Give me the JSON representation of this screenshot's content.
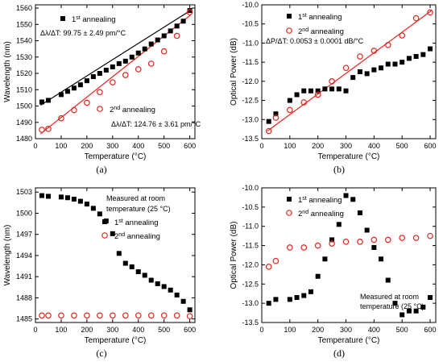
{
  "colors": {
    "series1": "#000000",
    "series2": "#e8241c",
    "fit1": "#000000",
    "fit2": "#e8241c"
  },
  "chart_data": [
    {
      "type": "scatter",
      "panel_label": "(a)",
      "xlabel": "Temperature (°C)",
      "ylabel": "Wavelength (nm)",
      "xlim": [
        0,
        620
      ],
      "ylim": [
        1480,
        1562
      ],
      "xticks": [
        0,
        100,
        200,
        300,
        400,
        500,
        600
      ],
      "yticks": [
        1480,
        1490,
        1500,
        1510,
        1520,
        1530,
        1540,
        1550,
        1560
      ],
      "legend_position": "top-left",
      "annotations": {
        "series1": "Δλ/ΔT: 99.75 ± 2.49 pm/°C",
        "series2": "Δλ/ΔT: 124.76 ± 3.61 pm/°C"
      },
      "series": [
        {
          "name_main": "1",
          "name_sup": "st",
          "name_rest": " annealing",
          "marker": "square",
          "x": [
            25,
            50,
            100,
            125,
            150,
            175,
            200,
            225,
            250,
            275,
            300,
            325,
            350,
            375,
            400,
            425,
            450,
            475,
            500,
            525,
            550,
            575,
            600
          ],
          "y": [
            1502.5,
            1503.5,
            1507,
            1509,
            1511,
            1513,
            1515.5,
            1518,
            1520,
            1522,
            1524,
            1526,
            1527.5,
            1530,
            1532.5,
            1535,
            1538,
            1540.5,
            1543,
            1546,
            1549,
            1552,
            1558.5
          ],
          "fit": [
            [
              20,
              1500.5
            ],
            [
              605,
              1558.8
            ]
          ]
        },
        {
          "name_main": "2",
          "name_sup": "nd",
          "name_rest": " annealing",
          "marker": "circle",
          "x": [
            25,
            50,
            100,
            150,
            200,
            250,
            300,
            350,
            400,
            450,
            500,
            550,
            600
          ],
          "y": [
            1485.5,
            1486,
            1492.5,
            1497.5,
            1502,
            1508.5,
            1514.5,
            1519,
            1522.5,
            1526,
            1533.5,
            1543,
            1557.5
          ],
          "fit": [
            [
              20,
              1483
            ],
            [
              605,
              1556
            ]
          ]
        }
      ]
    },
    {
      "type": "scatter",
      "panel_label": "(b)",
      "xlabel": "Temperature (°C)",
      "ylabel": "Optical Power (dB)",
      "xlim": [
        0,
        620
      ],
      "ylim": [
        -13.5,
        -10.0
      ],
      "xticks": [
        0,
        100,
        200,
        300,
        400,
        500,
        600
      ],
      "yticks": [
        -13.5,
        -13.0,
        -12.5,
        -12.0,
        -11.5,
        -11.0,
        -10.5,
        -10.0
      ],
      "ytick_labels": [
        "-13.5",
        "-13.0",
        "-12.5",
        "-12.0",
        "-11.5",
        "-11.0",
        "-10.5",
        "-10.0"
      ],
      "legend_position": "top-left",
      "annotations": {
        "series2": "ΔP/ΔT: 0.0053 ± 0.0001 dB/°C"
      },
      "series": [
        {
          "name_main": "1",
          "name_sup": "st",
          "name_rest": " annealing",
          "marker": "square",
          "x": [
            25,
            50,
            100,
            125,
            150,
            175,
            200,
            225,
            250,
            275,
            300,
            325,
            350,
            375,
            400,
            425,
            450,
            475,
            500,
            525,
            550,
            575,
            600
          ],
          "y": [
            -13.05,
            -12.85,
            -12.5,
            -12.35,
            -12.25,
            -12.25,
            -12.25,
            -12.2,
            -12.2,
            -12.2,
            -12.25,
            -11.9,
            -11.75,
            -11.8,
            -11.7,
            -11.65,
            -11.55,
            -11.55,
            -11.5,
            -11.4,
            -11.35,
            -11.3,
            -11.15
          ],
          "fit": null
        },
        {
          "name_main": "2",
          "name_sup": "nd",
          "name_rest": " annealing",
          "marker": "circle",
          "x": [
            25,
            50,
            100,
            150,
            200,
            250,
            300,
            350,
            400,
            450,
            500,
            550,
            600
          ],
          "y": [
            -13.3,
            -12.95,
            -12.75,
            -12.55,
            -12.35,
            -12.0,
            -11.65,
            -11.35,
            -11.2,
            -11.05,
            -10.8,
            -10.35,
            -10.2
          ],
          "fit": [
            [
              20,
              -13.3
            ],
            [
              605,
              -10.15
            ]
          ]
        }
      ]
    },
    {
      "type": "scatter",
      "panel_label": "(c)",
      "xlabel": "Temperature (°C)",
      "ylabel": "Wavelength (nm)",
      "xlim": [
        0,
        620
      ],
      "ylim": [
        1484.5,
        1503.6
      ],
      "xticks": [
        0,
        100,
        200,
        300,
        400,
        500,
        600
      ],
      "yticks": [
        1485,
        1488,
        1491,
        1494,
        1497,
        1500,
        1503
      ],
      "legend_position": "right",
      "annotations": {
        "note_line1": "Measured at room",
        "note_line2": "temperature (25 °C)"
      },
      "series": [
        {
          "name_main": "1",
          "name_sup": "st",
          "name_rest": " annealing",
          "marker": "square",
          "x": [
            25,
            50,
            100,
            125,
            150,
            175,
            200,
            225,
            250,
            275,
            300,
            325,
            350,
            375,
            400,
            425,
            450,
            475,
            500,
            525,
            550,
            575,
            600
          ],
          "y": [
            1502.5,
            1502.4,
            1502.3,
            1502.2,
            1502.0,
            1501.7,
            1501.3,
            1500.7,
            1499.9,
            1498.9,
            1497.1,
            1494.3,
            1492.9,
            1492.4,
            1491.7,
            1491.2,
            1490.5,
            1490.0,
            1489.6,
            1489.1,
            1488.4,
            1487.5,
            1486.3
          ],
          "fit": null
        },
        {
          "name_main": "2",
          "name_sup": "nd",
          "name_rest": " annealing",
          "marker": "circle",
          "x": [
            25,
            50,
            100,
            150,
            200,
            250,
            300,
            350,
            400,
            450,
            500,
            550,
            600
          ],
          "y": [
            1485.5,
            1485.5,
            1485.5,
            1485.5,
            1485.5,
            1485.5,
            1485.5,
            1485.5,
            1485.5,
            1485.5,
            1485.5,
            1485.5,
            1485.4
          ],
          "fit": null
        }
      ]
    },
    {
      "type": "scatter",
      "panel_label": "(d)",
      "xlabel": "Temperature (°C)",
      "ylabel": "Optical Power (dB)",
      "xlim": [
        0,
        620
      ],
      "ylim": [
        -13.5,
        -10.0
      ],
      "xticks": [
        0,
        100,
        200,
        300,
        400,
        500,
        600
      ],
      "yticks": [
        -13.5,
        -13.0,
        -12.5,
        -12.0,
        -11.5,
        -11.0,
        -10.5,
        -10.0
      ],
      "ytick_labels": [
        "-13.5",
        "-13.0",
        "-12.5",
        "-12.0",
        "-11.5",
        "-11.0",
        "-10.5",
        "-10.0"
      ],
      "legend_position": "top-left",
      "annotations": {
        "note_line1": "Measured at room",
        "note_line2": "temperature (25 °C)"
      },
      "series": [
        {
          "name_main": "1",
          "name_sup": "st",
          "name_rest": " annealing",
          "marker": "square",
          "x": [
            25,
            50,
            100,
            125,
            150,
            175,
            200,
            225,
            250,
            275,
            300,
            325,
            350,
            375,
            400,
            425,
            450,
            475,
            500,
            525,
            550,
            575,
            600
          ],
          "y": [
            -13.0,
            -12.9,
            -12.9,
            -12.85,
            -12.8,
            -12.7,
            -12.3,
            -11.85,
            -11.35,
            -10.95,
            -10.2,
            -10.3,
            -10.65,
            -11.1,
            -11.55,
            -11.85,
            -12.4,
            -13.0,
            -13.3,
            -13.2,
            -13.2,
            -13.1,
            -12.85
          ],
          "fit": null
        },
        {
          "name_main": "2",
          "name_sup": "nd",
          "name_rest": " annealing",
          "marker": "circle",
          "x": [
            25,
            50,
            100,
            150,
            200,
            250,
            300,
            350,
            400,
            450,
            500,
            550,
            600
          ],
          "y": [
            -12.05,
            -11.9,
            -11.55,
            -11.55,
            -11.5,
            -11.45,
            -11.4,
            -11.4,
            -11.35,
            -11.35,
            -11.3,
            -11.3,
            -11.25
          ],
          "fit": null
        }
      ]
    }
  ]
}
